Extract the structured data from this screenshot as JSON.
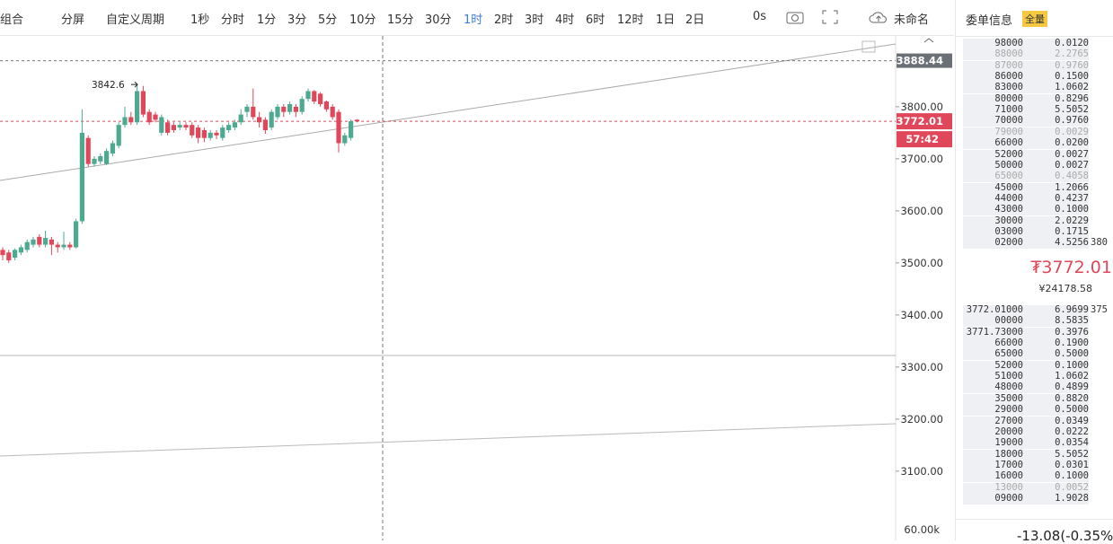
{
  "toolbar": {
    "tabs": [
      "组合",
      "分屏",
      "自定义周期",
      "1秒",
      "分时",
      "1分",
      "3分",
      "5分",
      "10分",
      "15分",
      "30分",
      "1时",
      "2时",
      "3时",
      "4时",
      "6时",
      "12时",
      "1日",
      "2日"
    ],
    "active_tab": "1时",
    "timer": "0s",
    "layout_name": "未命名"
  },
  "chart": {
    "type": "candlestick",
    "ylim": [
      2967,
      3936
    ],
    "yticks": [
      {
        "value": 3800,
        "label": "3800.00"
      },
      {
        "value": 3700,
        "label": "3700.00"
      },
      {
        "value": 3600,
        "label": "3600.00"
      },
      {
        "value": 3500,
        "label": "3500.00"
      },
      {
        "value": 3400,
        "label": "3400.00"
      },
      {
        "value": 3300,
        "label": "3300.00"
      },
      {
        "value": 3200,
        "label": "3200.00"
      },
      {
        "value": 3100,
        "label": "3100.00"
      }
    ],
    "volume_axis_label": "60.00k",
    "high_price_line": 3888.44,
    "current_price": 3772.01,
    "countdown": "57:42",
    "annotation": {
      "text": "3842.6",
      "value": 3842.6
    },
    "candles": [
      {
        "open": 3525,
        "high": 3530,
        "low": 3505,
        "close": 3515
      },
      {
        "open": 3520,
        "high": 3525,
        "low": 3500,
        "close": 3505
      },
      {
        "open": 3510,
        "high": 3528,
        "low": 3505,
        "close": 3525
      },
      {
        "open": 3520,
        "high": 3535,
        "low": 3515,
        "close": 3530
      },
      {
        "open": 3525,
        "high": 3545,
        "low": 3520,
        "close": 3540
      },
      {
        "open": 3535,
        "high": 3550,
        "low": 3530,
        "close": 3545
      },
      {
        "open": 3550,
        "high": 3555,
        "low": 3530,
        "close": 3535
      },
      {
        "open": 3535,
        "high": 3562,
        "low": 3530,
        "close": 3548
      },
      {
        "open": 3545,
        "high": 3550,
        "low": 3515,
        "close": 3535
      },
      {
        "open": 3535,
        "high": 3540,
        "low": 3520,
        "close": 3530
      },
      {
        "open": 3530,
        "high": 3560,
        "low": 3525,
        "close": 3535
      },
      {
        "open": 3535,
        "high": 3540,
        "low": 3525,
        "close": 3530
      },
      {
        "open": 3530,
        "high": 3585,
        "low": 3528,
        "close": 3580
      },
      {
        "open": 3580,
        "high": 3795,
        "low": 3575,
        "close": 3750
      },
      {
        "open": 3740,
        "high": 3745,
        "low": 3685,
        "close": 3690
      },
      {
        "open": 3690,
        "high": 3705,
        "low": 3685,
        "close": 3700
      },
      {
        "open": 3695,
        "high": 3710,
        "low": 3690,
        "close": 3705
      },
      {
        "open": 3690,
        "high": 3720,
        "low": 3688,
        "close": 3715
      },
      {
        "open": 3710,
        "high": 3735,
        "low": 3705,
        "close": 3730
      },
      {
        "open": 3725,
        "high": 3770,
        "low": 3720,
        "close": 3765
      },
      {
        "open": 3765,
        "high": 3800,
        "low": 3760,
        "close": 3780
      },
      {
        "open": 3780,
        "high": 3790,
        "low": 3765,
        "close": 3770
      },
      {
        "open": 3770,
        "high": 3842.6,
        "low": 3765,
        "close": 3830
      },
      {
        "open": 3830,
        "high": 3840,
        "low": 3780,
        "close": 3785
      },
      {
        "open": 3790,
        "high": 3795,
        "low": 3765,
        "close": 3770
      },
      {
        "open": 3785,
        "high": 3790,
        "low": 3770,
        "close": 3775
      },
      {
        "open": 3750,
        "high": 3785,
        "low": 3745,
        "close": 3780
      },
      {
        "open": 3770,
        "high": 3775,
        "low": 3745,
        "close": 3750
      },
      {
        "open": 3765,
        "high": 3770,
        "low": 3750,
        "close": 3755
      },
      {
        "open": 3760,
        "high": 3770,
        "low": 3755,
        "close": 3765
      },
      {
        "open": 3765,
        "high": 3770,
        "low": 3755,
        "close": 3760
      },
      {
        "open": 3765,
        "high": 3770,
        "low": 3740,
        "close": 3745
      },
      {
        "open": 3760,
        "high": 3765,
        "low": 3730,
        "close": 3740
      },
      {
        "open": 3755,
        "high": 3760,
        "low": 3732,
        "close": 3740
      },
      {
        "open": 3740,
        "high": 3755,
        "low": 3735,
        "close": 3750
      },
      {
        "open": 3750,
        "high": 3755,
        "low": 3738,
        "close": 3745
      },
      {
        "open": 3740,
        "high": 3765,
        "low": 3735,
        "close": 3760
      },
      {
        "open": 3755,
        "high": 3770,
        "low": 3750,
        "close": 3765
      },
      {
        "open": 3760,
        "high": 3775,
        "low": 3755,
        "close": 3770
      },
      {
        "open": 3770,
        "high": 3795,
        "low": 3765,
        "close": 3785
      },
      {
        "open": 3790,
        "high": 3805,
        "low": 3780,
        "close": 3800
      },
      {
        "open": 3800,
        "high": 3835,
        "low": 3775,
        "close": 3780
      },
      {
        "open": 3780,
        "high": 3790,
        "low": 3760,
        "close": 3770
      },
      {
        "open": 3775,
        "high": 3780,
        "low": 3748,
        "close": 3755
      },
      {
        "open": 3760,
        "high": 3795,
        "low": 3755,
        "close": 3790
      },
      {
        "open": 3780,
        "high": 3805,
        "low": 3775,
        "close": 3800
      },
      {
        "open": 3800,
        "high": 3805,
        "low": 3780,
        "close": 3790
      },
      {
        "open": 3790,
        "high": 3810,
        "low": 3785,
        "close": 3805
      },
      {
        "open": 3800,
        "high": 3805,
        "low": 3780,
        "close": 3790
      },
      {
        "open": 3790,
        "high": 3820,
        "low": 3785,
        "close": 3815
      },
      {
        "open": 3815,
        "high": 3835,
        "low": 3810,
        "close": 3830
      },
      {
        "open": 3830,
        "high": 3832,
        "low": 3805,
        "close": 3810
      },
      {
        "open": 3825,
        "high": 3828,
        "low": 3800,
        "close": 3805
      },
      {
        "open": 3810,
        "high": 3812,
        "low": 3790,
        "close": 3795
      },
      {
        "open": 3800,
        "high": 3805,
        "low": 3775,
        "close": 3780
      },
      {
        "open": 3790,
        "high": 3795,
        "low": 3712,
        "close": 3730
      },
      {
        "open": 3730,
        "high": 3750,
        "low": 3725,
        "close": 3745
      },
      {
        "open": 3740,
        "high": 3775,
        "low": 3735,
        "close": 3772
      },
      {
        "open": 3775,
        "high": 3776,
        "low": 3770,
        "close": 3772
      }
    ]
  },
  "order_book": {
    "title": "委单信息",
    "badge": "全量",
    "asks": [
      {
        "price": "98000",
        "amount": "0.0120"
      },
      {
        "price": "88000",
        "amount": "2.2765",
        "dim": true
      },
      {
        "price": "87000",
        "amount": "0.9760",
        "dim": true
      },
      {
        "price": "86000",
        "amount": "0.1500"
      },
      {
        "price": "83000",
        "amount": "1.0602"
      },
      {
        "price": "80000",
        "amount": "0.8296"
      },
      {
        "price": "71000",
        "amount": "5.5052"
      },
      {
        "price": "70000",
        "amount": "0.9760"
      },
      {
        "price": "79000",
        "amount": "0.0029",
        "dim": true
      },
      {
        "price": "66000",
        "amount": "0.0200"
      },
      {
        "price": "52000",
        "amount": "0.0027"
      },
      {
        "price": "50000",
        "amount": "0.0027"
      },
      {
        "price": "65000",
        "amount": "0.4058",
        "dim": true
      },
      {
        "price": "45000",
        "amount": "1.2066"
      },
      {
        "price": "44000",
        "amount": "0.4237"
      },
      {
        "price": "43000",
        "amount": "0.1000"
      },
      {
        "price": "30000",
        "amount": "2.0229"
      },
      {
        "price": "03000",
        "amount": "0.1715"
      },
      {
        "price": "02000",
        "amount": "4.5256",
        "extra": "380"
      }
    ],
    "last_price": "₮3772.01",
    "last_price_cny": "¥24178.58",
    "bids": [
      {
        "price": "3772.01000",
        "amount": "6.9699",
        "extra": "375"
      },
      {
        "price": "00000",
        "amount": "8.5835"
      },
      {
        "price": "3771.73000",
        "amount": "0.3976"
      },
      {
        "price": "66000",
        "amount": "0.1900"
      },
      {
        "price": "65000",
        "amount": "0.5000"
      },
      {
        "price": "52000",
        "amount": "0.1000"
      },
      {
        "price": "51000",
        "amount": "1.0602"
      },
      {
        "price": "48000",
        "amount": "0.4899"
      },
      {
        "price": "35000",
        "amount": "0.8820"
      },
      {
        "price": "29000",
        "amount": "0.5000"
      },
      {
        "price": "27000",
        "amount": "0.0349"
      },
      {
        "price": "20000",
        "amount": "0.0222"
      },
      {
        "price": "19000",
        "amount": "0.0354"
      },
      {
        "price": "18000",
        "amount": "5.5052"
      },
      {
        "price": "17000",
        "amount": "0.0301"
      },
      {
        "price": "16000",
        "amount": "0.1000"
      },
      {
        "price": "13000",
        "amount": "0.0052",
        "dim": true
      },
      {
        "price": "09000",
        "amount": "1.9028"
      }
    ],
    "change": "-13.08(-0.35%"
  }
}
